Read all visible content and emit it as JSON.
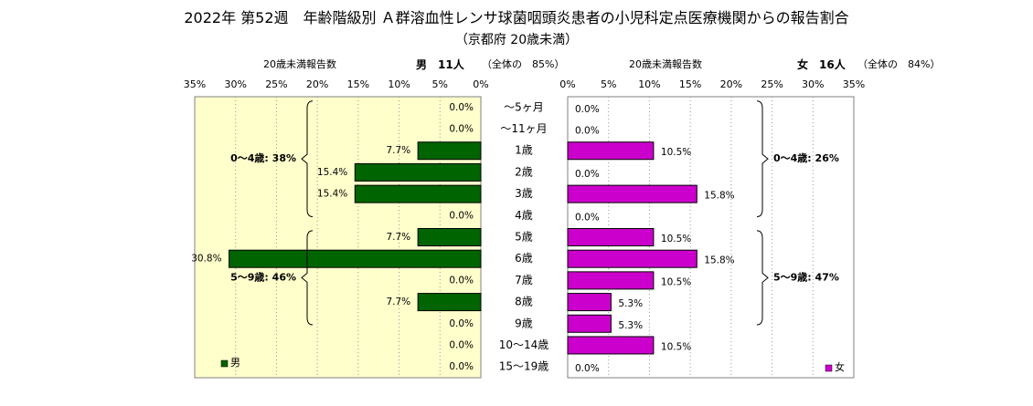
{
  "title": "2022年 第52週　年齢階級別 Ａ群溶血性レンサ球菌咽頭炎患者の小児科定点医療機関からの報告割合",
  "subtitle": "（京都府 20歳未満）",
  "male_header": {
    "count_label": "20歳未満報告数",
    "sex_count": "男　11人",
    "share": "（全体の　85%）"
  },
  "female_header": {
    "count_label": "20歳未満報告数",
    "sex_count": "女　16人",
    "share": "（全体の　84%）"
  },
  "chart_data": {
    "type": "bar",
    "orientation": "horizontal-population-pyramid",
    "categories": [
      "～5ヶ月",
      "～11ヶ月",
      "1歳",
      "2歳",
      "3歳",
      "4歳",
      "5歳",
      "6歳",
      "7歳",
      "8歳",
      "9歳",
      "10～14歳",
      "15～19歳"
    ],
    "xlim": [
      0,
      35
    ],
    "x_ticks": [
      "0%",
      "5%",
      "10%",
      "15%",
      "20%",
      "25%",
      "30%",
      "35%"
    ],
    "grid": "vertical dotted gridlines every 5%",
    "series": [
      {
        "name": "男",
        "side": "left",
        "color": "#006400",
        "values": [
          0.0,
          0.0,
          7.7,
          15.4,
          15.4,
          0.0,
          7.7,
          30.8,
          0.0,
          7.7,
          0.0,
          0.0,
          0.0
        ],
        "labels": [
          "0.0%",
          "0.0%",
          "7.7%",
          "15.4%",
          "15.4%",
          "0.0%",
          "7.7%",
          "30.8%",
          "0.0%",
          "7.7%",
          "0.0%",
          "0.0%",
          "0.0%"
        ],
        "legend": "男",
        "plot_background": "#ffffcc"
      },
      {
        "name": "女",
        "side": "right",
        "color": "#cc00cc",
        "values": [
          0.0,
          0.0,
          10.5,
          0.0,
          15.8,
          0.0,
          10.5,
          15.8,
          10.5,
          5.3,
          5.3,
          10.5,
          0.0
        ],
        "labels": [
          "0.0%",
          "0.0%",
          "10.5%",
          "0.0%",
          "15.8%",
          "0.0%",
          "10.5%",
          "15.8%",
          "10.5%",
          "5.3%",
          "5.3%",
          "10.5%",
          "0.0%"
        ],
        "legend": "女",
        "plot_background": "#ffffff"
      }
    ],
    "annotations": {
      "male": [
        {
          "text": "0～4歳: 38%",
          "from": 0,
          "to": 5
        },
        {
          "text": "5～9歳: 46%",
          "from": 6,
          "to": 10
        }
      ],
      "female": [
        {
          "text": "0～4歳: 26%",
          "from": 0,
          "to": 5
        },
        {
          "text": "5～9歳: 47%",
          "from": 6,
          "to": 10
        }
      ]
    },
    "legend_placement": "bottom-left (男) / bottom-right (女)"
  }
}
